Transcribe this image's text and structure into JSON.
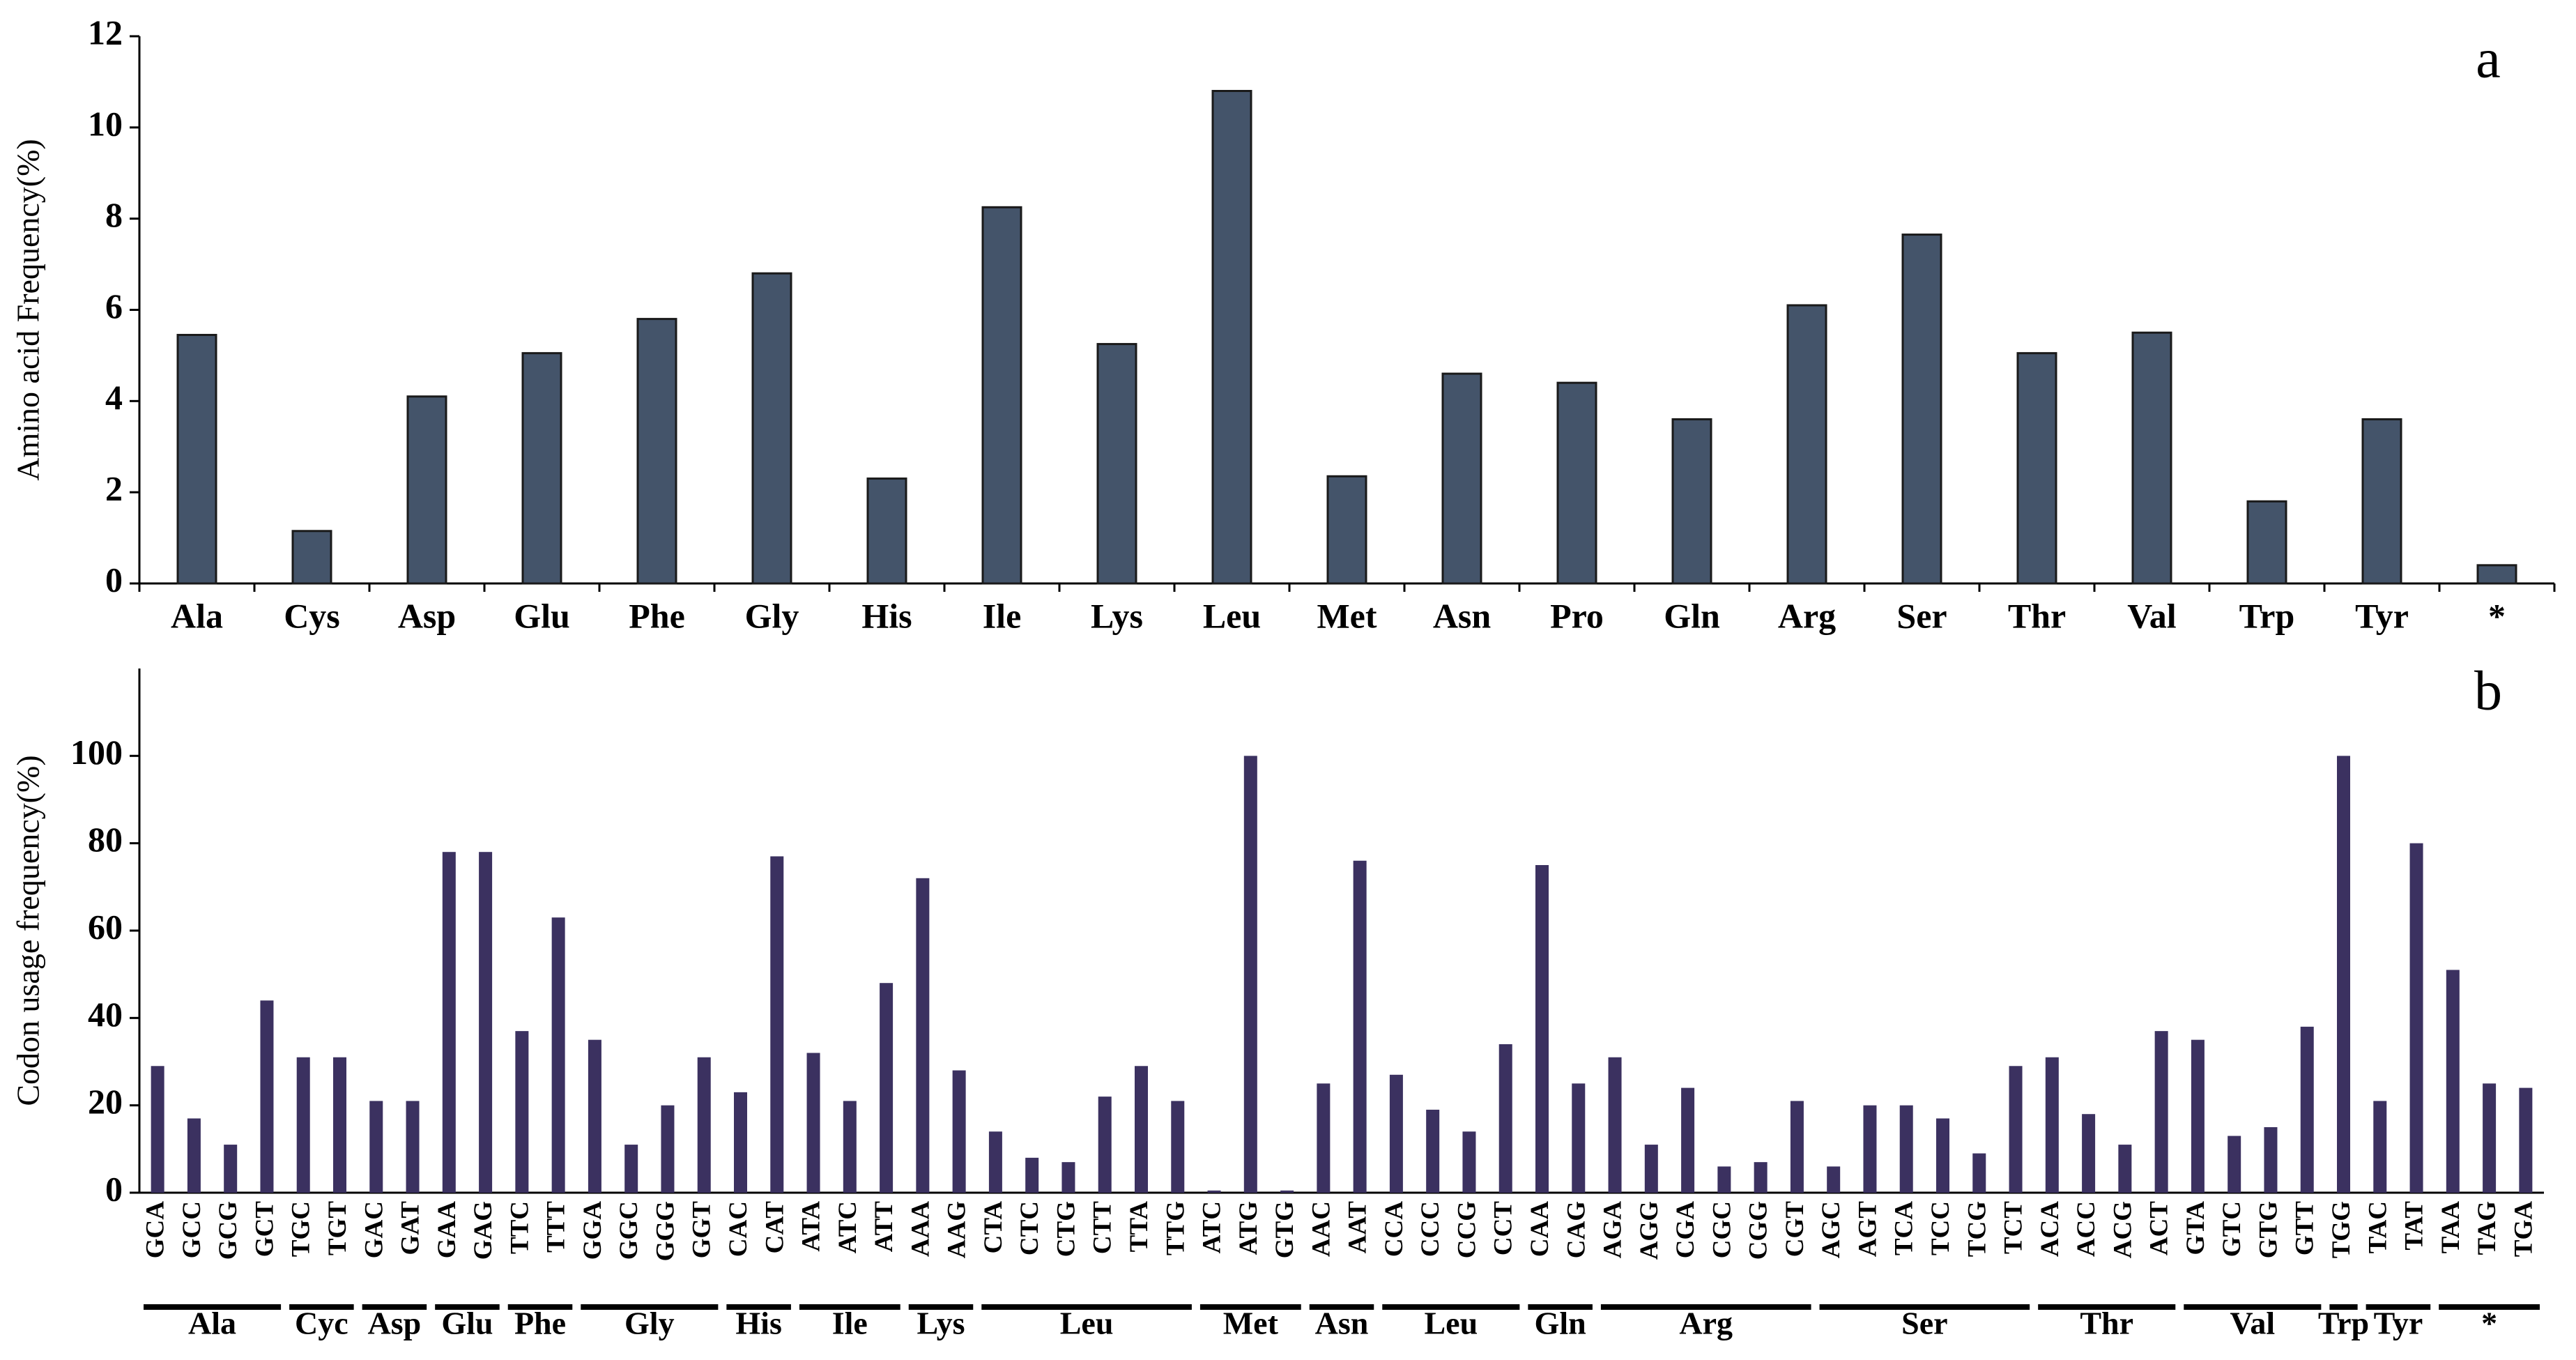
{
  "chart_data": [
    {
      "type": "bar",
      "annotation": "a",
      "ylabel": "Amino acid Frequency(%)",
      "color": "#44546a",
      "categories": [
        "Ala",
        "Cys",
        "Asp",
        "Glu",
        "Phe",
        "Gly",
        "His",
        "Ile",
        "Lys",
        "Leu",
        "Met",
        "Asn",
        "Pro",
        "Gln",
        "Arg",
        "Ser",
        "Thr",
        "Val",
        "Trp",
        "Tyr",
        "*"
      ],
      "values": [
        5.45,
        1.15,
        4.1,
        5.05,
        5.8,
        6.8,
        2.3,
        8.25,
        5.25,
        10.8,
        2.35,
        4.6,
        4.4,
        3.6,
        6.1,
        7.65,
        5.05,
        5.5,
        1.8,
        3.6,
        0.4
      ],
      "ylim": [
        0,
        12
      ],
      "yticks": [
        0,
        2,
        4,
        6,
        8,
        10,
        12
      ]
    },
    {
      "type": "grouped-bar",
      "annotation": "b",
      "ylabel": "Codon usage frequency(%)",
      "color": "#3b3160",
      "groups": [
        {
          "name": "Ala",
          "codons": [
            "GCA",
            "GCC",
            "GCG",
            "GCT"
          ],
          "values": [
            29,
            17,
            11,
            44
          ]
        },
        {
          "name": "Cyc",
          "codons": [
            "TGC",
            "TGT"
          ],
          "values": [
            31,
            31
          ]
        },
        {
          "name": "Asp",
          "codons": [
            "GAC",
            "GAT"
          ],
          "values": [
            21,
            21
          ]
        },
        {
          "name": "Glu",
          "codons": [
            "GAA",
            "GAG"
          ],
          "values": [
            78,
            78
          ]
        },
        {
          "name": "Phe",
          "codons": [
            "TTC",
            "TTT"
          ],
          "values": [
            37,
            63
          ]
        },
        {
          "name": "Gly",
          "codons": [
            "GGA",
            "GGC",
            "GGG",
            "GGT"
          ],
          "values": [
            35,
            11,
            20,
            31
          ]
        },
        {
          "name": "His",
          "codons": [
            "CAC",
            "CAT"
          ],
          "values": [
            23,
            77
          ]
        },
        {
          "name": "Ile",
          "codons": [
            "ATA",
            "ATC",
            "ATT"
          ],
          "values": [
            32,
            21,
            48
          ]
        },
        {
          "name": "Lys",
          "codons": [
            "AAA",
            "AAG"
          ],
          "values": [
            72,
            28
          ]
        },
        {
          "name": "Leu",
          "codons": [
            "CTA",
            "CTC",
            "CTG",
            "CTT",
            "TTA",
            "TTG"
          ],
          "values": [
            14,
            8,
            7,
            22,
            29,
            21
          ]
        },
        {
          "name": "Met",
          "codons": [
            "ATC",
            "ATG",
            "GTG"
          ],
          "values": [
            0.5,
            100,
            0.5
          ]
        },
        {
          "name": "Asn",
          "codons": [
            "AAC",
            "AAT"
          ],
          "values": [
            25,
            76
          ]
        },
        {
          "name": "Leu",
          "codons": [
            "CCA",
            "CCC",
            "CCG",
            "CCT"
          ],
          "values": [
            27,
            19,
            14,
            34
          ]
        },
        {
          "name": "Gln",
          "codons": [
            "CAA",
            "CAG"
          ],
          "values": [
            75,
            25
          ]
        },
        {
          "name": "Arg",
          "codons": [
            "AGA",
            "AGG",
            "CGA",
            "CGC",
            "CGG",
            "CGT"
          ],
          "values": [
            31,
            11,
            24,
            6,
            7,
            21
          ]
        },
        {
          "name": "Ser",
          "codons": [
            "AGC",
            "AGT",
            "TCA",
            "TCC",
            "TCG",
            "TCT"
          ],
          "values": [
            6,
            20,
            20,
            17,
            9,
            29
          ]
        },
        {
          "name": "Thr",
          "codons": [
            "ACA",
            "ACC",
            "ACG",
            "ACT"
          ],
          "values": [
            31,
            18,
            11,
            37
          ]
        },
        {
          "name": "Val",
          "codons": [
            "GTA",
            "GTC",
            "GTG",
            "GTT"
          ],
          "values": [
            35,
            13,
            15,
            38
          ]
        },
        {
          "name": "Trp",
          "codons": [
            "TGG"
          ],
          "values": [
            100
          ]
        },
        {
          "name": "Tyr",
          "codons": [
            "TAC",
            "TAT"
          ],
          "values": [
            21,
            80
          ]
        },
        {
          "name": "*",
          "codons": [
            "TAA",
            "TAG",
            "TGA"
          ],
          "values": [
            51,
            25,
            24
          ]
        }
      ],
      "ylim": [
        0,
        120
      ],
      "yticks": [
        0,
        20,
        40,
        60,
        80,
        100
      ]
    }
  ]
}
